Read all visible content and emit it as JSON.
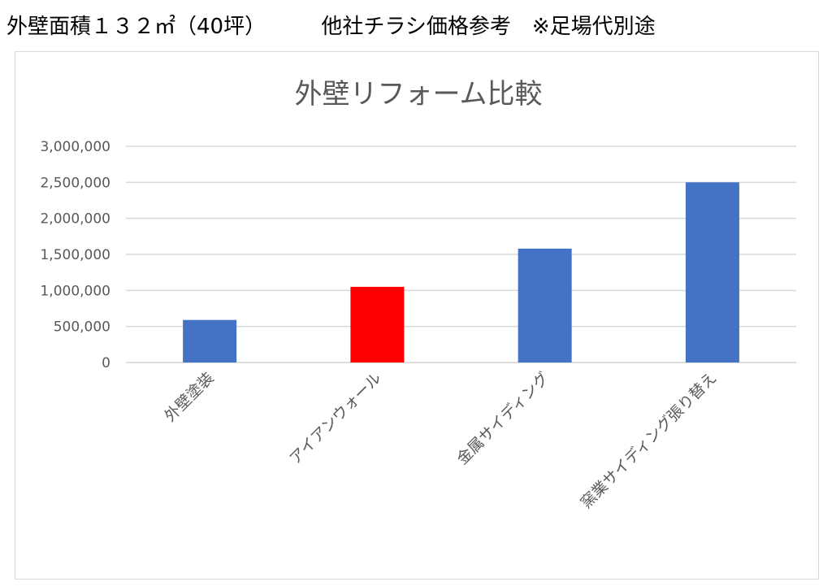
{
  "header": {
    "left": "外壁面積１３２㎡（40坪）",
    "right": "他社チラシ価格参考　※足場代別途"
  },
  "chart_data": {
    "type": "bar",
    "title": "外壁リフォーム比較",
    "categories": [
      "外壁塗装",
      "アイアンウォール",
      "金属サイディング",
      "窯業サイディング張り替え"
    ],
    "values": [
      590000,
      1050000,
      1580000,
      2500000
    ],
    "bar_colors": [
      "#4472c4",
      "#ff0000",
      "#4472c4",
      "#4472c4"
    ],
    "ylim": [
      0,
      3000000
    ],
    "yticks": [
      0,
      500000,
      1000000,
      1500000,
      2000000,
      2500000,
      3000000
    ],
    "ytick_labels": [
      "0",
      "500,000",
      "1,000,000",
      "1,500,000",
      "2,000,000",
      "2,500,000",
      "3,000,000"
    ],
    "grid": true,
    "legend": "none"
  }
}
